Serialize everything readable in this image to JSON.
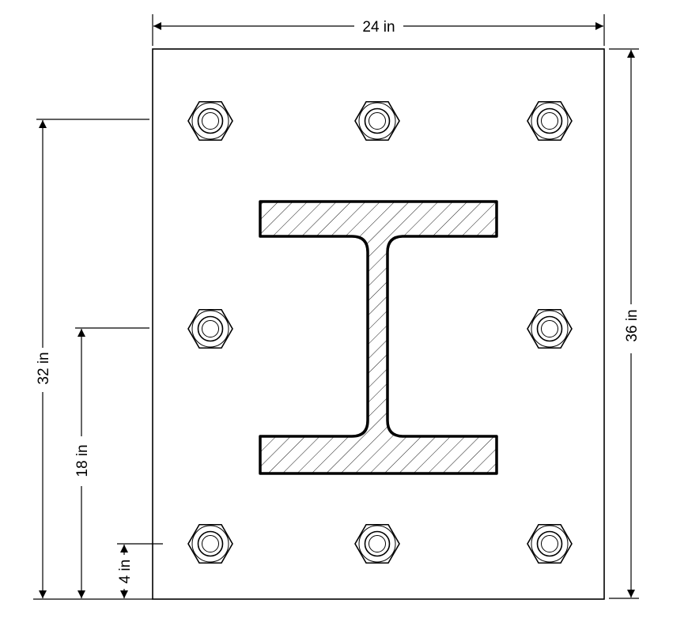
{
  "dimensions": {
    "width": "24 in",
    "height": "36 in",
    "upper_bolt_row": "32 in",
    "middle_bolt_row": "18 in",
    "lower_bolt_row": "4 in"
  },
  "colors": {
    "stroke": "#000000",
    "background": "#ffffff"
  },
  "icons": {
    "bolt": "hex-nut-icon",
    "section": "i-beam-section-icon"
  }
}
